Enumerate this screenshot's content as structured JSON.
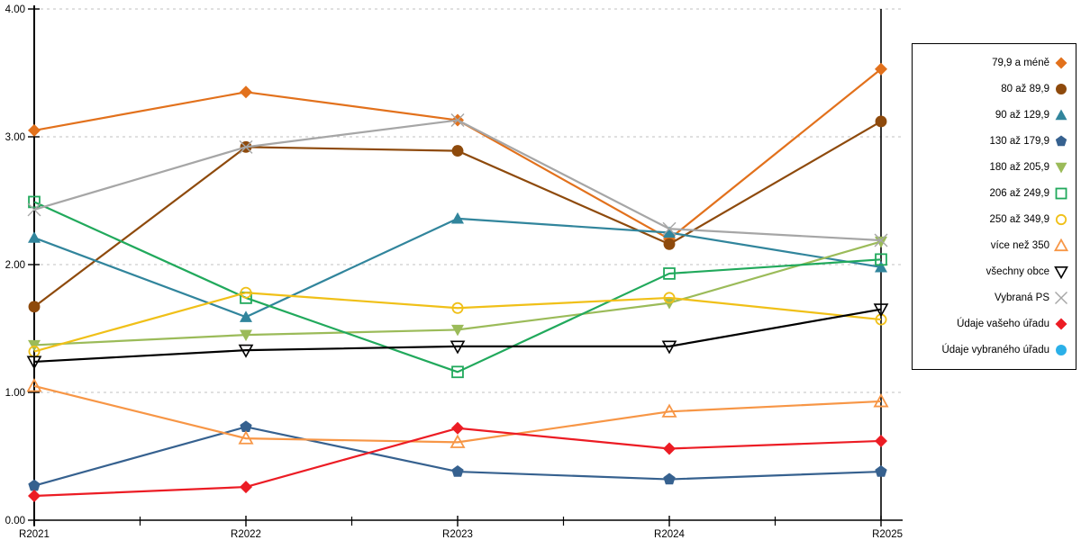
{
  "chart_data": {
    "type": "line",
    "title": "",
    "xlabel": "",
    "ylabel": "",
    "x_categories": [
      "R2021",
      "R2022",
      "R2023",
      "R2024",
      "R2025"
    ],
    "y_tick_labels": [
      "0.00",
      "1.00",
      "2.00",
      "3.00",
      "4.00"
    ],
    "ylim": [
      0,
      4
    ],
    "grid": "horizontal-dashed",
    "gridline_color": "#c0c0c0",
    "axis_color": "#000000",
    "legend_position": "right-outside",
    "highlighted_category": "R2025",
    "series": [
      {
        "name": "79,9 a méně",
        "marker": "diamond-filled",
        "color": "#E2711C",
        "values": [
          3.05,
          3.35,
          3.13,
          2.2,
          3.53
        ]
      },
      {
        "name": "80 až 89,9",
        "marker": "circle-filled",
        "color": "#8E4A0C",
        "values": [
          1.67,
          2.92,
          2.89,
          2.16,
          3.12
        ]
      },
      {
        "name": "90 až 129,9",
        "marker": "triangle-up-filled",
        "color": "#31859C",
        "values": [
          2.21,
          1.59,
          2.36,
          2.25,
          1.98
        ]
      },
      {
        "name": "130 až 179,9",
        "marker": "pentagon-filled",
        "color": "#36618F",
        "values": [
          0.27,
          0.73,
          0.38,
          0.32,
          0.38
        ]
      },
      {
        "name": "180 až 205,9",
        "marker": "triangle-down-filled",
        "color": "#9BBB59",
        "values": [
          1.37,
          1.45,
          1.49,
          1.7,
          2.18
        ]
      },
      {
        "name": "206 až 249,9",
        "marker": "square-open",
        "color": "#21A95C",
        "values": [
          2.49,
          1.74,
          1.16,
          1.93,
          2.04
        ]
      },
      {
        "name": "250 až 349,9",
        "marker": "circle-open",
        "color": "#F0C018",
        "values": [
          1.32,
          1.78,
          1.66,
          1.74,
          1.57
        ]
      },
      {
        "name": "více než 350",
        "marker": "triangle-up-open",
        "color": "#F79646",
        "values": [
          1.05,
          0.64,
          0.61,
          0.85,
          0.93
        ]
      },
      {
        "name": "všechny obce",
        "marker": "triangle-down-open",
        "color": "#000000",
        "values": [
          1.24,
          1.33,
          1.36,
          1.36,
          1.65
        ]
      },
      {
        "name": "Vybraná PS",
        "marker": "x",
        "color": "#A6A6A6",
        "values": [
          2.43,
          2.92,
          3.13,
          2.28,
          2.19
        ]
      },
      {
        "name": "Údaje vašeho úřadu",
        "marker": "diamond-filled",
        "color": "#EC1C24",
        "values": [
          0.19,
          0.26,
          0.72,
          0.56,
          0.62
        ]
      },
      {
        "name": "Údaje vybraného úřadu",
        "marker": "circle-filled",
        "color": "#2BB0E8",
        "values": [
          null,
          null,
          null,
          null,
          null
        ]
      }
    ]
  }
}
